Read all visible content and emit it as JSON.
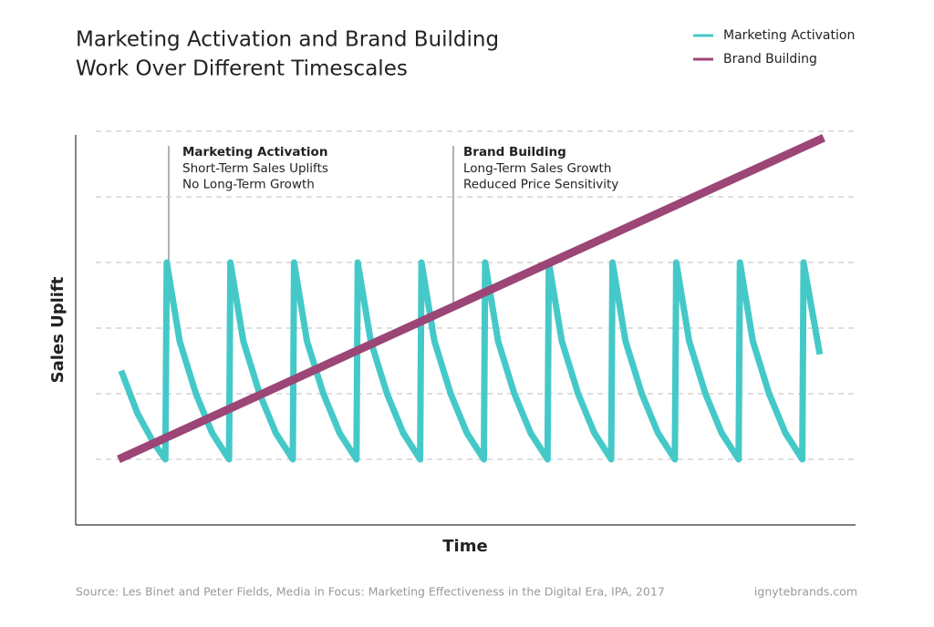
{
  "chart_data": {
    "type": "line",
    "title": [
      "Marketing Activation and Brand Building",
      "Work Over Different Timescales"
    ],
    "x_label": "Time",
    "y_label": "Sales Uplift",
    "xlim": [
      0,
      12
    ],
    "ylim": [
      0,
      6
    ],
    "yticks": [
      1,
      2,
      3,
      4,
      5,
      6
    ],
    "grid": true,
    "legend": "top-right",
    "series": [
      {
        "name": "Marketing Activation",
        "color": "#45c9c8",
        "x": [
          0.7,
          0.95,
          1.2,
          1.38,
          1.4,
          1.6,
          1.85,
          2.1,
          2.36,
          2.38,
          2.58,
          2.83,
          3.08,
          3.34,
          3.36,
          3.56,
          3.81,
          4.06,
          4.32,
          4.34,
          4.54,
          4.79,
          5.04,
          5.3,
          5.32,
          5.52,
          5.77,
          6.02,
          6.28,
          6.3,
          6.5,
          6.75,
          7,
          7.26,
          7.28,
          7.48,
          7.73,
          7.98,
          8.24,
          8.26,
          8.46,
          8.71,
          8.96,
          9.22,
          9.24,
          9.44,
          9.69,
          9.94,
          10.2,
          10.22,
          10.42,
          10.67,
          10.92,
          11.18,
          11.2,
          11.45
        ],
        "values": [
          2.35,
          1.7,
          1.25,
          1.0,
          4,
          2.8,
          2.0,
          1.4,
          1.0,
          4,
          2.8,
          2.0,
          1.4,
          1.0,
          4,
          2.8,
          2.0,
          1.4,
          1.0,
          4,
          2.8,
          2.0,
          1.4,
          1.0,
          4,
          2.8,
          2.0,
          1.4,
          1.0,
          4,
          2.8,
          2.0,
          1.4,
          1.0,
          4,
          2.8,
          2.0,
          1.4,
          1.0,
          4,
          2.8,
          2.0,
          1.4,
          1.0,
          4,
          2.8,
          2.0,
          1.4,
          1.0,
          4,
          2.8,
          2.0,
          1.4,
          1.0,
          4,
          2.6
        ]
      },
      {
        "name": "Brand Building",
        "color": "#9b4677",
        "x": [
          0.66,
          11.51
        ],
        "values": [
          1.0,
          5.9
        ]
      }
    ],
    "annotations": [
      {
        "title": "Marketing Activation",
        "lines": [
          "Short-Term Sales Uplifts",
          "No Long-Term Growth"
        ]
      },
      {
        "title": "Brand Building",
        "lines": [
          "Long-Term Sales Growth",
          "Reduced Price Sensitivity"
        ]
      }
    ],
    "source": "Source: Les Binet and Peter Fields, Media in Focus: Marketing Effectiveness in the Digital Era, IPA, 2017",
    "credit": "ignytebrands.com"
  }
}
